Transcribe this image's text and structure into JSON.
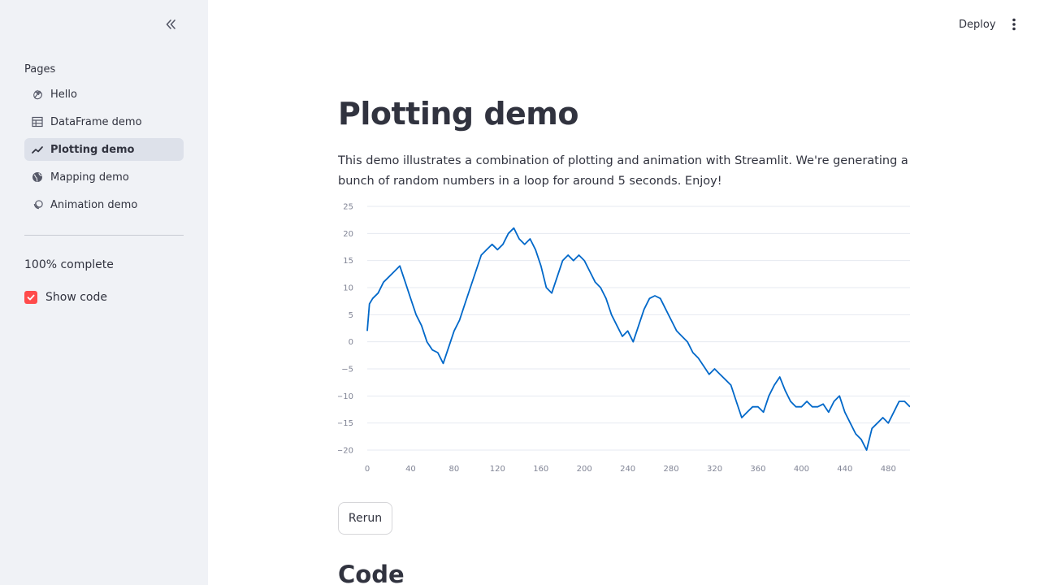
{
  "sidebar": {
    "pages_label": "Pages",
    "items": [
      {
        "label": "Hello",
        "icon": "waving-hand-icon",
        "active": false
      },
      {
        "label": "DataFrame demo",
        "icon": "table-icon",
        "active": false
      },
      {
        "label": "Plotting demo",
        "icon": "trending-up-icon",
        "active": true
      },
      {
        "label": "Mapping demo",
        "icon": "globe-icon",
        "active": false
      },
      {
        "label": "Animation demo",
        "icon": "animation-icon",
        "active": false
      }
    ],
    "progress_text": "100% complete",
    "progress": 1.0,
    "show_code": {
      "label": "Show code",
      "checked": true
    }
  },
  "header": {
    "deploy_label": "Deploy"
  },
  "main": {
    "title": "Plotting demo",
    "description": "This demo illustrates a combination of plotting and animation with Streamlit. We're generating a bunch of random numbers in a loop for around 5 seconds. Enjoy!",
    "rerun_label": "Rerun",
    "code_heading": "Code"
  },
  "colors": {
    "accent": "#ff4b4b",
    "line": "#0068c9",
    "sidebar_bg": "#f0f2f6",
    "text": "#31333f"
  },
  "chart_data": {
    "type": "line",
    "x_ticks": [
      0,
      40,
      80,
      120,
      160,
      200,
      240,
      280,
      320,
      360,
      400,
      440,
      480
    ],
    "y_ticks": [
      "25",
      "20",
      "15",
      "10",
      "5",
      "0",
      "−5",
      "−10",
      "−15",
      "−20"
    ],
    "ylim": [
      -20,
      25
    ],
    "xlim": [
      0,
      500
    ],
    "grid": true,
    "series": [
      {
        "x": [
          0,
          2,
          5,
          10,
          15,
          20,
          25,
          30,
          35,
          40,
          45,
          50,
          55,
          60,
          65,
          70,
          75,
          80,
          85,
          90,
          95,
          100,
          105,
          110,
          115,
          120,
          125,
          130,
          135,
          140,
          145,
          150,
          155,
          160,
          165,
          170,
          175,
          180,
          185,
          190,
          195,
          200,
          205,
          210,
          215,
          220,
          225,
          230,
          235,
          240,
          245,
          250,
          255,
          260,
          265,
          270,
          275,
          280,
          285,
          290,
          295,
          300,
          305,
          310,
          315,
          320,
          325,
          330,
          335,
          340,
          345,
          350,
          355,
          360,
          365,
          370,
          375,
          380,
          385,
          390,
          395,
          400,
          405,
          410,
          415,
          420,
          425,
          430,
          435,
          440,
          445,
          450,
          455,
          460,
          465,
          470,
          475,
          480,
          485,
          490,
          495,
          500
        ],
        "values": [
          2,
          7,
          8,
          9,
          11,
          12,
          13,
          14,
          11,
          8,
          5,
          3,
          0,
          -1.5,
          -2,
          -4,
          -1,
          2,
          4,
          7,
          10,
          13,
          16,
          17,
          18,
          17,
          18,
          20,
          21,
          19,
          18,
          19,
          17,
          14,
          10,
          9,
          12,
          15,
          16,
          15,
          16,
          15,
          13,
          11,
          10,
          8,
          5,
          3,
          1,
          2,
          0,
          3,
          6,
          8,
          8.5,
          8,
          6,
          4,
          2,
          1,
          0,
          -2,
          -3,
          -4.5,
          -6,
          -5,
          -6,
          -7,
          -8,
          -11,
          -14,
          -13,
          -12,
          -12,
          -13,
          -10,
          -8,
          -6.5,
          -9,
          -11,
          -12,
          -12,
          -11,
          -12,
          -12,
          -11.5,
          -13,
          -11,
          -10,
          -13,
          -15,
          -17,
          -18,
          -20,
          -16,
          -15,
          -14,
          -15,
          -13,
          -11,
          -11,
          -12
        ]
      }
    ]
  }
}
